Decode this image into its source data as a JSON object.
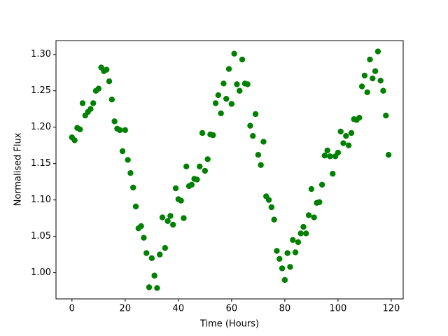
{
  "chart_data": {
    "type": "scatter",
    "xlabel": "Time (Hours)",
    "ylabel": "Normalised Flux",
    "x": [
      0,
      1,
      2,
      3,
      4,
      5,
      6,
      7,
      8,
      9,
      10,
      11,
      12,
      13,
      14,
      15,
      16,
      17,
      18,
      19,
      20,
      21,
      22,
      23,
      24,
      25,
      26,
      27,
      28,
      29,
      30,
      31,
      32,
      33,
      34,
      35,
      36,
      37,
      38,
      39,
      40,
      41,
      42,
      43,
      44,
      45,
      46,
      47,
      48,
      49,
      50,
      51,
      52,
      53,
      54,
      55,
      56,
      57,
      58,
      59,
      60,
      61,
      62,
      63,
      64,
      65,
      66,
      67,
      68,
      69,
      70,
      71,
      72,
      73,
      74,
      75,
      76,
      77,
      78,
      79,
      80,
      81,
      82,
      83,
      84,
      85,
      86,
      87,
      88,
      89,
      90,
      91,
      92,
      93,
      94,
      95,
      96,
      97,
      98,
      99,
      100,
      101,
      102,
      103,
      104,
      105,
      106,
      107,
      108,
      109,
      110,
      111,
      112,
      113,
      114,
      115,
      116,
      117,
      118,
      119
    ],
    "series": [
      {
        "color": "#008000",
        "values": [
          1.186,
          1.182,
          1.199,
          1.197,
          1.233,
          1.216,
          1.221,
          1.225,
          1.233,
          1.25,
          1.253,
          1.282,
          1.277,
          1.279,
          1.263,
          1.238,
          1.208,
          1.198,
          1.196,
          1.167,
          1.196,
          1.155,
          1.137,
          1.117,
          1.091,
          1.061,
          1.064,
          1.048,
          1.027,
          0.98,
          1.02,
          0.996,
          0.979,
          1.025,
          1.076,
          1.034,
          1.071,
          1.078,
          1.066,
          1.116,
          1.101,
          1.099,
          1.075,
          1.146,
          1.119,
          1.121,
          1.129,
          1.128,
          1.146,
          1.192,
          1.14,
          1.156,
          1.19,
          1.189,
          1.233,
          1.244,
          1.219,
          1.26,
          1.239,
          1.28,
          1.232,
          1.301,
          1.259,
          1.25,
          1.293,
          1.26,
          1.259,
          1.202,
          1.188,
          1.218,
          1.162,
          1.148,
          1.18,
          1.105,
          1.1,
          1.09,
          1.073,
          1.03,
          1.019,
          1.006,
          0.99,
          1.027,
          1.008,
          1.045,
          1.028,
          1.042,
          1.054,
          1.063,
          1.054,
          1.079,
          1.115,
          1.076,
          1.096,
          1.097,
          1.121,
          1.161,
          1.168,
          1.16,
          1.136,
          1.16,
          1.165,
          1.194,
          1.178,
          1.188,
          1.175,
          1.192,
          1.211,
          1.21,
          1.213,
          1.256,
          1.271,
          1.248,
          1.293,
          1.267,
          1.277,
          1.304,
          1.264,
          1.25,
          1.216,
          1.162
        ]
      }
    ],
    "xlim": [
      -6,
      124.5
    ],
    "ylim": [
      0.964,
      1.319
    ],
    "xticks": [
      0,
      20,
      40,
      60,
      80,
      100,
      120
    ],
    "yticks": [
      {
        "value": 1.0,
        "label": "1.00"
      },
      1.05,
      {
        "value": 1.1,
        "label": "1.10"
      },
      1.15,
      {
        "value": 1.2,
        "label": "1.20"
      },
      1.25,
      {
        "value": 1.3,
        "label": "1.30"
      }
    ],
    "grid": false
  }
}
